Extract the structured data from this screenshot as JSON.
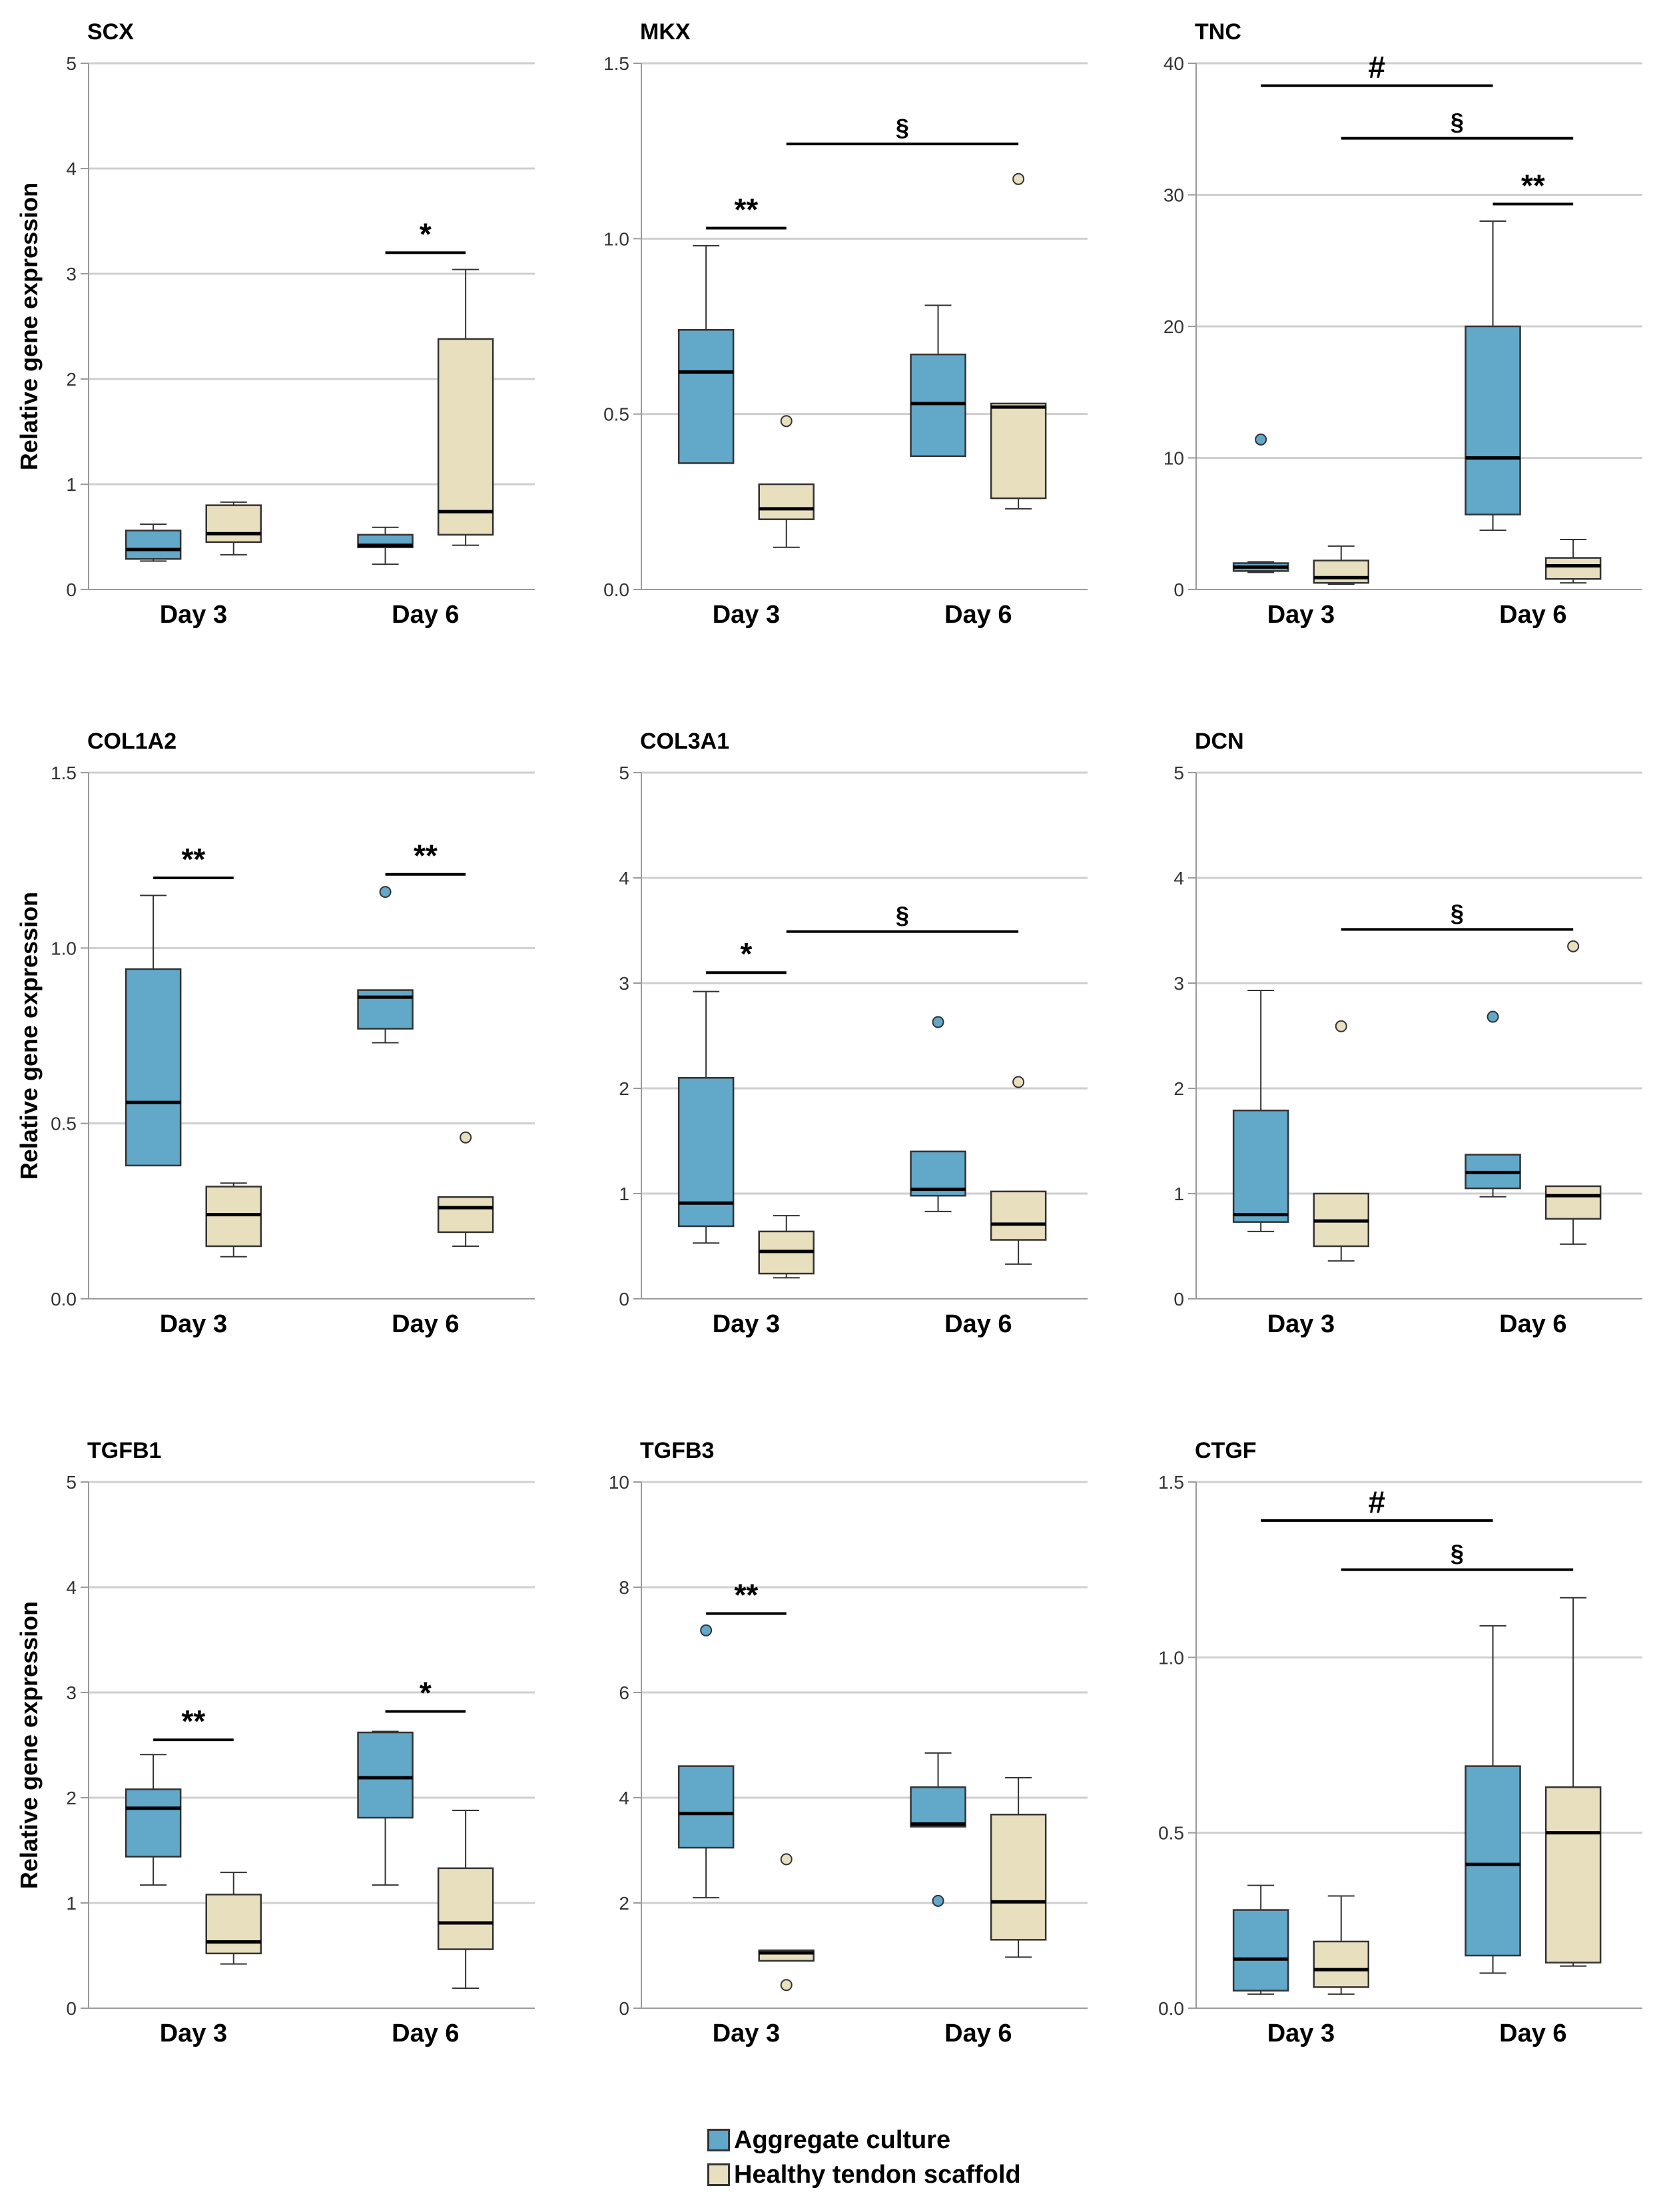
{
  "colors": {
    "aggregate": "#62a8c9",
    "scaffold": "#e8dfbf",
    "grid": "#cfcfcf",
    "axis": "#9a9a9a",
    "stroke": "#333333"
  },
  "legend": {
    "items": [
      {
        "label": "Aggregate culture",
        "color": "#62a8c9"
      },
      {
        "label": "Healthy tendon scaffold",
        "color": "#e8dfbf"
      }
    ]
  },
  "chart_data": [
    {
      "type": "box",
      "title": "SCX",
      "ylabel": "Relative gene expression",
      "categories": [
        "Day 3",
        "Day 6"
      ],
      "ylim": [
        0,
        5
      ],
      "yticks": [
        "0",
        "1",
        "2",
        "3",
        "4",
        "5"
      ],
      "yticks_values": [
        0,
        1,
        2,
        3,
        4,
        5
      ],
      "series": [
        {
          "name": "Aggregate culture",
          "boxes": [
            {
              "min": 0.27,
              "q1": 0.29,
              "median": 0.38,
              "q3": 0.56,
              "max": 0.62,
              "outliers": []
            },
            {
              "min": 0.24,
              "q1": 0.4,
              "median": 0.42,
              "q3": 0.52,
              "max": 0.59,
              "outliers": []
            }
          ]
        },
        {
          "name": "Healthy tendon scaffold",
          "boxes": [
            {
              "min": 0.33,
              "q1": 0.45,
              "median": 0.53,
              "q3": 0.8,
              "max": 0.83,
              "outliers": []
            },
            {
              "min": 0.42,
              "q1": 0.52,
              "median": 0.74,
              "q3": 2.38,
              "max": 3.04,
              "outliers": []
            }
          ]
        }
      ],
      "annotations": [
        {
          "symbol": "*",
          "from": [
            1,
            0
          ],
          "to": [
            1,
            1
          ],
          "y": 3.2
        }
      ]
    },
    {
      "type": "box",
      "title": "MKX",
      "ylabel": "",
      "categories": [
        "Day 3",
        "Day 6"
      ],
      "ylim": [
        0,
        1.5
      ],
      "yticks": [
        "0.0",
        "0.5",
        "1.0",
        "1.5"
      ],
      "yticks_values": [
        0,
        0.5,
        1.0,
        1.5
      ],
      "series": [
        {
          "name": "Aggregate culture",
          "boxes": [
            {
              "min": 0.36,
              "q1": 0.36,
              "median": 0.62,
              "q3": 0.74,
              "max": 0.98,
              "outliers": []
            },
            {
              "min": 0.38,
              "q1": 0.38,
              "median": 0.53,
              "q3": 0.67,
              "max": 0.81,
              "outliers": []
            }
          ]
        },
        {
          "name": "Healthy tendon scaffold",
          "boxes": [
            {
              "min": 0.12,
              "q1": 0.2,
              "median": 0.23,
              "q3": 0.3,
              "max": 0.3,
              "outliers": [
                0.48
              ]
            },
            {
              "min": 0.23,
              "q1": 0.26,
              "median": 0.52,
              "q3": 0.53,
              "max": 0.53,
              "outliers": [
                1.17
              ]
            }
          ]
        }
      ],
      "annotations": [
        {
          "symbol": "**",
          "from": [
            0,
            0
          ],
          "to": [
            0,
            1
          ],
          "y": 1.03
        },
        {
          "symbol": "§",
          "from": [
            0,
            1
          ],
          "to": [
            1,
            1
          ],
          "y": 1.27
        }
      ]
    },
    {
      "type": "box",
      "title": "TNC",
      "ylabel": "",
      "categories": [
        "Day 3",
        "Day 6"
      ],
      "ylim": [
        0,
        40
      ],
      "yticks": [
        "0",
        "10",
        "20",
        "30",
        "40"
      ],
      "yticks_values": [
        0,
        10,
        20,
        30,
        40
      ],
      "series": [
        {
          "name": "Aggregate culture",
          "boxes": [
            {
              "min": 1.3,
              "q1": 1.4,
              "median": 1.7,
              "q3": 2.0,
              "max": 2.1,
              "outliers": [
                11.4
              ]
            },
            {
              "min": 4.5,
              "q1": 5.7,
              "median": 10.0,
              "q3": 20.0,
              "max": 28.0,
              "outliers": []
            }
          ]
        },
        {
          "name": "Healthy tendon scaffold",
          "boxes": [
            {
              "min": 0.4,
              "q1": 0.5,
              "median": 0.9,
              "q3": 2.2,
              "max": 3.3,
              "outliers": []
            },
            {
              "min": 0.5,
              "q1": 0.8,
              "median": 1.8,
              "q3": 2.4,
              "max": 3.8,
              "outliers": []
            }
          ]
        }
      ],
      "annotations": [
        {
          "symbol": "#",
          "from": [
            0,
            0
          ],
          "to": [
            1,
            0
          ],
          "y": 38.3
        },
        {
          "symbol": "§",
          "from": [
            0,
            1
          ],
          "to": [
            1,
            1
          ],
          "y": 34.3
        },
        {
          "symbol": "**",
          "from": [
            1,
            0
          ],
          "to": [
            1,
            1
          ],
          "y": 29.3
        }
      ]
    },
    {
      "type": "box",
      "title": "COL1A2",
      "ylabel": "Relative gene expression",
      "categories": [
        "Day 3",
        "Day 6"
      ],
      "ylim": [
        0,
        1.5
      ],
      "yticks": [
        "0.0",
        "0.5",
        "1.0",
        "1.5"
      ],
      "yticks_values": [
        0,
        0.5,
        1.0,
        1.5
      ],
      "series": [
        {
          "name": "Aggregate culture",
          "boxes": [
            {
              "min": 0.38,
              "q1": 0.38,
              "median": 0.56,
              "q3": 0.94,
              "max": 1.15,
              "outliers": []
            },
            {
              "min": 0.73,
              "q1": 0.77,
              "median": 0.86,
              "q3": 0.88,
              "max": 0.88,
              "outliers": [
                1.16
              ]
            }
          ]
        },
        {
          "name": "Healthy tendon scaffold",
          "boxes": [
            {
              "min": 0.12,
              "q1": 0.15,
              "median": 0.24,
              "q3": 0.32,
              "max": 0.33,
              "outliers": []
            },
            {
              "min": 0.15,
              "q1": 0.19,
              "median": 0.26,
              "q3": 0.29,
              "max": 0.29,
              "outliers": [
                0.46
              ]
            }
          ]
        }
      ],
      "annotations": [
        {
          "symbol": "**",
          "from": [
            0,
            0
          ],
          "to": [
            0,
            1
          ],
          "y": 1.2
        },
        {
          "symbol": "**",
          "from": [
            1,
            0
          ],
          "to": [
            1,
            1
          ],
          "y": 1.21
        }
      ]
    },
    {
      "type": "box",
      "title": "COL3A1",
      "ylabel": "",
      "categories": [
        "Day 3",
        "Day 6"
      ],
      "ylim": [
        0,
        5
      ],
      "yticks": [
        "0",
        "1",
        "2",
        "3",
        "4",
        "5"
      ],
      "yticks_values": [
        0,
        1,
        2,
        3,
        4,
        5
      ],
      "series": [
        {
          "name": "Aggregate culture",
          "boxes": [
            {
              "min": 0.53,
              "q1": 0.69,
              "median": 0.91,
              "q3": 2.1,
              "max": 2.92,
              "outliers": []
            },
            {
              "min": 0.83,
              "q1": 0.98,
              "median": 1.04,
              "q3": 1.4,
              "max": 1.4,
              "outliers": [
                2.63
              ]
            }
          ]
        },
        {
          "name": "Healthy tendon scaffold",
          "boxes": [
            {
              "min": 0.2,
              "q1": 0.24,
              "median": 0.45,
              "q3": 0.64,
              "max": 0.79,
              "outliers": []
            },
            {
              "min": 0.33,
              "q1": 0.56,
              "median": 0.71,
              "q3": 1.02,
              "max": 1.02,
              "outliers": [
                2.06
              ]
            }
          ]
        }
      ],
      "annotations": [
        {
          "symbol": "*",
          "from": [
            0,
            0
          ],
          "to": [
            0,
            1
          ],
          "y": 3.1
        },
        {
          "symbol": "§",
          "from": [
            0,
            1
          ],
          "to": [
            1,
            1
          ],
          "y": 3.49
        }
      ]
    },
    {
      "type": "box",
      "title": "DCN",
      "ylabel": "",
      "categories": [
        "Day 3",
        "Day 6"
      ],
      "ylim": [
        0,
        5
      ],
      "yticks": [
        "0",
        "1",
        "2",
        "3",
        "4",
        "5"
      ],
      "yticks_values": [
        0,
        1,
        2,
        3,
        4,
        5
      ],
      "series": [
        {
          "name": "Aggregate culture",
          "boxes": [
            {
              "min": 0.64,
              "q1": 0.73,
              "median": 0.8,
              "q3": 1.79,
              "max": 2.93,
              "outliers": []
            },
            {
              "min": 0.97,
              "q1": 1.05,
              "median": 1.2,
              "q3": 1.37,
              "max": 1.37,
              "outliers": [
                2.68
              ]
            }
          ]
        },
        {
          "name": "Healthy tendon scaffold",
          "boxes": [
            {
              "min": 0.36,
              "q1": 0.5,
              "median": 0.74,
              "q3": 1.0,
              "max": 1.0,
              "outliers": [
                2.59
              ]
            },
            {
              "min": 0.52,
              "q1": 0.76,
              "median": 0.98,
              "q3": 1.07,
              "max": 1.07,
              "outliers": [
                3.35
              ]
            }
          ]
        }
      ],
      "annotations": [
        {
          "symbol": "§",
          "from": [
            0,
            1
          ],
          "to": [
            1,
            1
          ],
          "y": 3.51
        }
      ]
    },
    {
      "type": "box",
      "title": "TGFB1",
      "ylabel": "Relative gene expression",
      "categories": [
        "Day 3",
        "Day 6"
      ],
      "ylim": [
        0,
        5
      ],
      "yticks": [
        "0",
        "1",
        "2",
        "3",
        "4",
        "5"
      ],
      "yticks_values": [
        0,
        1,
        2,
        3,
        4,
        5
      ],
      "series": [
        {
          "name": "Aggregate culture",
          "boxes": [
            {
              "min": 1.17,
              "q1": 1.44,
              "median": 1.9,
              "q3": 2.08,
              "max": 2.41,
              "outliers": []
            },
            {
              "min": 1.17,
              "q1": 1.81,
              "median": 2.19,
              "q3": 2.62,
              "max": 2.63,
              "outliers": []
            }
          ]
        },
        {
          "name": "Healthy tendon scaffold",
          "boxes": [
            {
              "min": 0.42,
              "q1": 0.52,
              "median": 0.63,
              "q3": 1.08,
              "max": 1.29,
              "outliers": []
            },
            {
              "min": 0.19,
              "q1": 0.56,
              "median": 0.81,
              "q3": 1.33,
              "max": 1.88,
              "outliers": []
            }
          ]
        }
      ],
      "annotations": [
        {
          "symbol": "**",
          "from": [
            0,
            0
          ],
          "to": [
            0,
            1
          ],
          "y": 2.55
        },
        {
          "symbol": "*",
          "from": [
            1,
            0
          ],
          "to": [
            1,
            1
          ],
          "y": 2.82
        }
      ]
    },
    {
      "type": "box",
      "title": "TGFB3",
      "ylabel": "",
      "categories": [
        "Day 3",
        "Day 6"
      ],
      "ylim": [
        0,
        10
      ],
      "yticks": [
        "0",
        "2",
        "4",
        "6",
        "8",
        "10"
      ],
      "yticks_values": [
        0,
        2,
        4,
        6,
        8,
        10
      ],
      "series": [
        {
          "name": "Aggregate culture",
          "boxes": [
            {
              "min": 2.1,
              "q1": 3.05,
              "median": 3.7,
              "q3": 4.6,
              "max": 4.6,
              "outliers": [
                7.18
              ]
            },
            {
              "min": 3.45,
              "q1": 3.45,
              "median": 3.5,
              "q3": 4.2,
              "max": 4.85,
              "outliers": [
                2.04
              ]
            }
          ]
        },
        {
          "name": "Healthy tendon scaffold",
          "boxes": [
            {
              "min": 0.9,
              "q1": 0.9,
              "median": 1.05,
              "q3": 1.1,
              "max": 1.1,
              "outliers": [
                2.83,
                0.44
              ]
            },
            {
              "min": 0.97,
              "q1": 1.3,
              "median": 2.02,
              "q3": 3.68,
              "max": 4.38,
              "outliers": []
            }
          ]
        }
      ],
      "annotations": [
        {
          "symbol": "**",
          "from": [
            0,
            0
          ],
          "to": [
            0,
            1
          ],
          "y": 7.5
        }
      ]
    },
    {
      "type": "box",
      "title": "CTGF",
      "ylabel": "",
      "categories": [
        "Day 3",
        "Day 6"
      ],
      "ylim": [
        0,
        1.5
      ],
      "yticks": [
        "0.0",
        "0.5",
        "1.0",
        "1.5"
      ],
      "yticks_values": [
        0,
        0.5,
        1.0,
        1.5
      ],
      "series": [
        {
          "name": "Aggregate culture",
          "boxes": [
            {
              "min": 0.04,
              "q1": 0.05,
              "median": 0.14,
              "q3": 0.28,
              "max": 0.35,
              "outliers": []
            },
            {
              "min": 0.1,
              "q1": 0.15,
              "median": 0.41,
              "q3": 0.69,
              "max": 1.09,
              "outliers": []
            }
          ]
        },
        {
          "name": "Healthy tendon scaffold",
          "boxes": [
            {
              "min": 0.04,
              "q1": 0.06,
              "median": 0.11,
              "q3": 0.19,
              "max": 0.32,
              "outliers": []
            },
            {
              "min": 0.12,
              "q1": 0.13,
              "median": 0.5,
              "q3": 0.63,
              "max": 1.17,
              "outliers": []
            }
          ]
        }
      ],
      "annotations": [
        {
          "symbol": "#",
          "from": [
            0,
            0
          ],
          "to": [
            1,
            0
          ],
          "y": 1.39
        },
        {
          "symbol": "§",
          "from": [
            0,
            1
          ],
          "to": [
            1,
            1
          ],
          "y": 1.25
        }
      ]
    }
  ]
}
